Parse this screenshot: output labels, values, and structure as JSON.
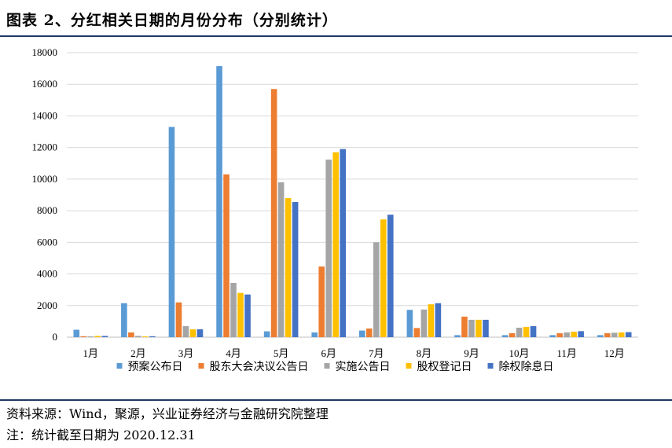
{
  "header": {
    "title": "图表 2、分红相关日期的月份分布（分别统计）"
  },
  "footer": {
    "source": "资料来源：Wind，聚源，兴业证券经济与金融研究院整理",
    "note": "注：统计截至日期为 2020.12.31"
  },
  "chart_data": {
    "type": "bar",
    "title": "",
    "xlabel": "",
    "ylabel": "",
    "ylim": [
      0,
      18000
    ],
    "yticks": [
      0,
      2000,
      4000,
      6000,
      8000,
      10000,
      12000,
      14000,
      16000,
      18000
    ],
    "grid": true,
    "legend_position": "bottom",
    "categories": [
      "1月",
      "2月",
      "3月",
      "4月",
      "5月",
      "6月",
      "7月",
      "8月",
      "9月",
      "10月",
      "11月",
      "12月"
    ],
    "series": [
      {
        "name": "预案公布日",
        "color": "#5b9bd5",
        "values": [
          470,
          2150,
          13300,
          17150,
          370,
          300,
          420,
          1730,
          130,
          130,
          130,
          130
        ]
      },
      {
        "name": "股东大会决议公告日",
        "color": "#ed7d31",
        "values": [
          60,
          300,
          2200,
          10300,
          15700,
          4470,
          550,
          580,
          1300,
          250,
          250,
          250
        ]
      },
      {
        "name": "实施公告日",
        "color": "#a5a5a5",
        "values": [
          50,
          80,
          700,
          3430,
          9800,
          11230,
          6000,
          1750,
          1100,
          600,
          300,
          280
        ]
      },
      {
        "name": "股权登记日",
        "color": "#ffc000",
        "values": [
          80,
          50,
          500,
          2800,
          8800,
          11700,
          7450,
          2080,
          1100,
          650,
          350,
          300
        ]
      },
      {
        "name": "除权除息日",
        "color": "#4472c4",
        "values": [
          80,
          60,
          500,
          2700,
          8550,
          11900,
          7750,
          2150,
          1100,
          700,
          380,
          320
        ]
      }
    ]
  }
}
